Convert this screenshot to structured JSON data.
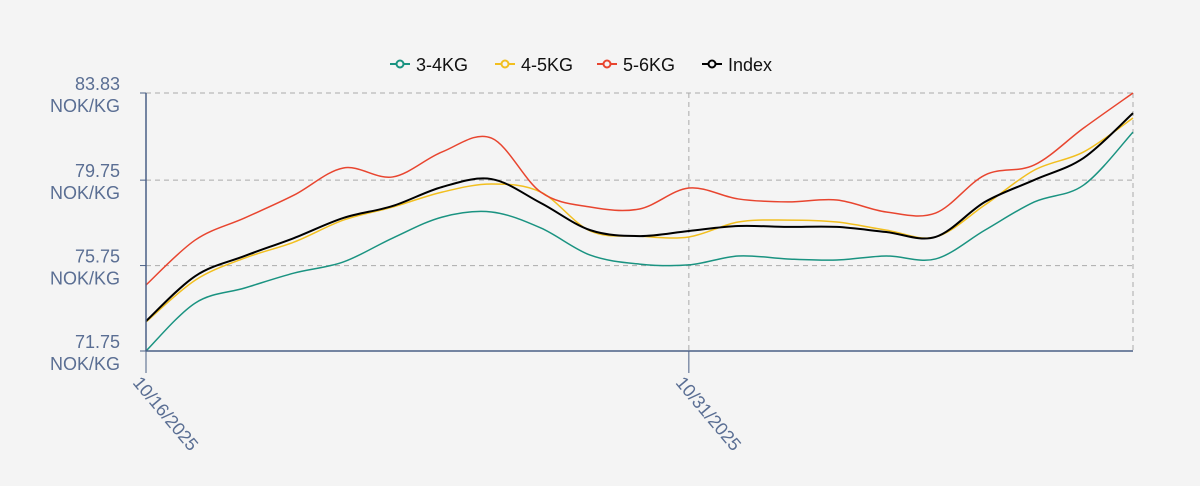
{
  "chart_data": {
    "type": "line",
    "categories": [
      "10/16/2025",
      null,
      null,
      null,
      null,
      null,
      null,
      null,
      null,
      null,
      null,
      "10/31/2025",
      null,
      null,
      null,
      null,
      null,
      null,
      null,
      null,
      null
    ],
    "series": [
      {
        "name": "3-4KG",
        "color": "#1a9381",
        "values": [
          71.75,
          74.0,
          74.7,
          75.4,
          75.92,
          77.04,
          78.02,
          78.26,
          77.51,
          76.24,
          75.82,
          75.78,
          76.2,
          76.06,
          76.01,
          76.2,
          76.06,
          77.41,
          78.73,
          79.52,
          82.0
        ]
      },
      {
        "name": "4-5KG",
        "color": "#f2bf1f",
        "values": [
          73.11,
          75.07,
          76.1,
          76.85,
          77.88,
          78.49,
          79.19,
          79.57,
          79.19,
          77.37,
          77.13,
          77.09,
          77.79,
          77.88,
          77.79,
          77.41,
          77.09,
          78.59,
          80.22,
          81.07,
          82.66
        ]
      },
      {
        "name": "5-6KG",
        "color": "#e8452f",
        "values": [
          74.84,
          76.95,
          77.98,
          79.05,
          80.32,
          79.9,
          81.07,
          81.72,
          79.19,
          78.49,
          78.4,
          79.38,
          78.87,
          78.73,
          78.82,
          78.26,
          78.21,
          79.99,
          80.46,
          82.19,
          83.83
        ]
      },
      {
        "name": "Index",
        "color": "#000000",
        "values": [
          73.15,
          75.26,
          76.2,
          77.04,
          77.98,
          78.54,
          79.43,
          79.8,
          78.68,
          77.41,
          77.13,
          77.37,
          77.6,
          77.56,
          77.56,
          77.32,
          77.09,
          78.73,
          79.76,
          80.79,
          82.89
        ]
      }
    ],
    "y_unit": "NOK/KG",
    "ylim": [
      71.75,
      83.83
    ],
    "yticks": [
      71.75,
      75.75,
      79.75,
      83.83
    ],
    "grid": true
  }
}
